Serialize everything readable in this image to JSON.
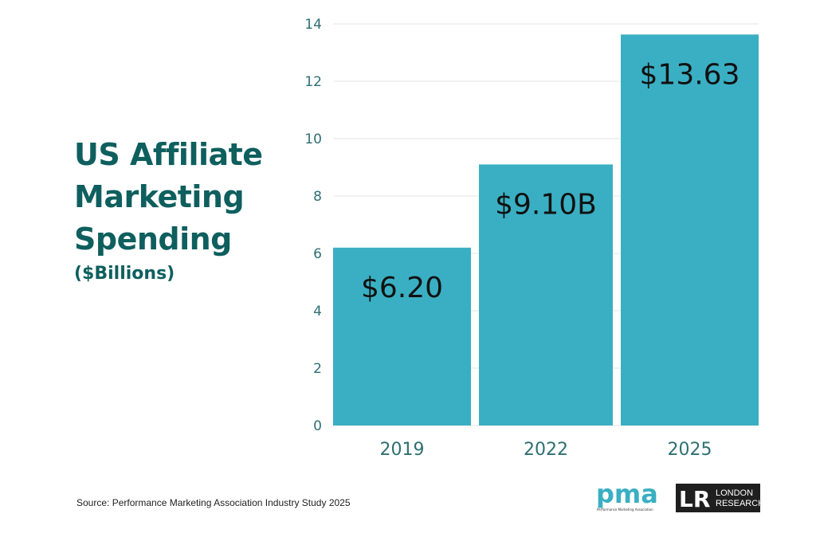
{
  "title": {
    "lines": [
      "US Affiliate",
      "Marketing",
      "Spending"
    ],
    "subtitle": "($Billions)"
  },
  "source": "Source: Performance Marketing Association Industry Study 2025",
  "logos": {
    "pma": {
      "text": "pma",
      "tagline": "Performance Marketing Association"
    },
    "london_research": {
      "line1": "LONDON",
      "line2": "RESEARCH",
      "mark": "LR"
    }
  },
  "colors": {
    "bar": "#3aafc3",
    "title": "#0e5f5e",
    "axis_text": "#2e6f72",
    "grid": "#e6e6e6"
  },
  "chart_data": {
    "type": "bar",
    "categories": [
      "2019",
      "2022",
      "2025"
    ],
    "values": [
      6.2,
      9.1,
      13.63
    ],
    "data_labels": [
      "$6.20",
      "$9.10B",
      "$13.63"
    ],
    "ylim": [
      0,
      14
    ],
    "yticks": [
      0,
      2,
      4,
      6,
      8,
      10,
      12,
      14
    ],
    "grid": true,
    "xlabel": "",
    "ylabel": ""
  }
}
